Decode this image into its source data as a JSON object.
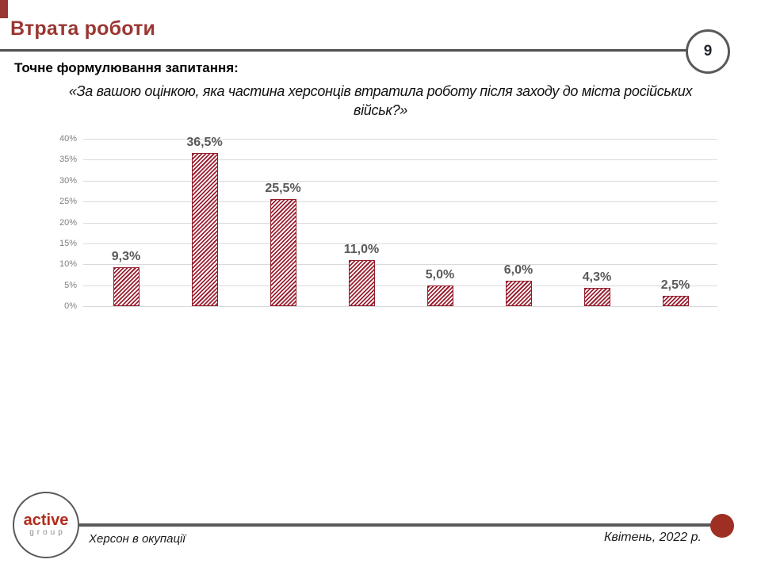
{
  "slide": {
    "title": "Втрата роботи",
    "page_number": "9",
    "question_label": "Точне формулювання запитання:",
    "question_line1": "«За вашою оцінкою, яка частина херсонців втратила роботу після заходу до міста російських",
    "question_line2": "військ?»"
  },
  "chart_data": {
    "type": "bar",
    "values": [
      9.3,
      36.5,
      25.5,
      11.0,
      5.0,
      6.0,
      4.3,
      2.5
    ],
    "value_labels": [
      "9,3%",
      "36,5%",
      "25,5%",
      "11,0%",
      "5,0%",
      "6,0%",
      "4,3%",
      "2,5%"
    ],
    "ylim": [
      0,
      40
    ],
    "yticks": [
      "40%",
      "35%",
      "30%",
      "25%",
      "20%",
      "15%",
      "10%",
      "5%",
      "0%"
    ],
    "grid": true,
    "legend": false,
    "bar_style": "diagonal-hatch",
    "bar_color": "#9b2031"
  },
  "footer": {
    "logo_active": "active",
    "logo_group": "group",
    "project": "Херсон в окупації",
    "date": "Квітень, 2022 р."
  },
  "colors": {
    "title_red": "#9a3632",
    "bar_stripe_red": "#9b2031",
    "data_label_gray": "#595959",
    "axis_label_gray": "#7f7f7f",
    "gridline_gray": "#d9d9d9",
    "rule_gray": "#4f4f4f",
    "logo_red": "#b22b1c",
    "dot_red": "#9e2f22"
  }
}
